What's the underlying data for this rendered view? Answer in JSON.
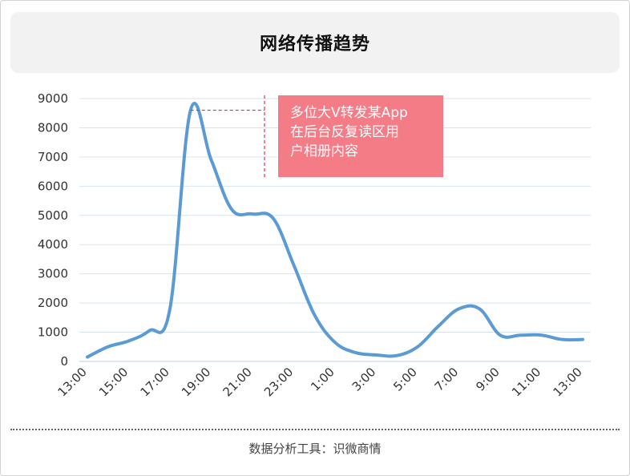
{
  "title": "网络传播趋势",
  "footer": "数据分析工具：识微商情",
  "chart_data": {
    "type": "line",
    "x": [
      "13:00",
      "14:00",
      "15:00",
      "16:00",
      "17:00",
      "18:00",
      "19:00",
      "20:00",
      "21:00",
      "22:00",
      "23:00",
      "0:00",
      "1:00",
      "2:00",
      "3:00",
      "4:00",
      "5:00",
      "6:00",
      "7:00",
      "8:00",
      "9:00",
      "10:00",
      "11:00",
      "12:00",
      "13:00"
    ],
    "x_tick_labels": [
      "13:00",
      "15:00",
      "17:00",
      "19:00",
      "21:00",
      "23:00",
      "1:00",
      "3:00",
      "5:00",
      "7:00",
      "9:00",
      "11:00",
      "13:00"
    ],
    "series": [
      {
        "values": [
          150,
          500,
          700,
          1050,
          1800,
          8600,
          6900,
          5200,
          5050,
          4900,
          3300,
          1600,
          650,
          300,
          220,
          200,
          500,
          1200,
          1800,
          1800,
          900,
          900,
          900,
          750,
          750
        ],
        "color": "#5b9bd5"
      }
    ],
    "ylim": [
      0,
      9000
    ],
    "yticks": [
      0,
      1000,
      2000,
      3000,
      4000,
      5000,
      6000,
      7000,
      8000,
      9000
    ],
    "grid": true,
    "annotation": {
      "lines": [
        "多位大V转发某App",
        "在后台反复读区用",
        "户相册内容"
      ],
      "x": "18:00",
      "y": 8600,
      "box_color": "#f47c86",
      "leader_color": "#e0334a"
    }
  }
}
